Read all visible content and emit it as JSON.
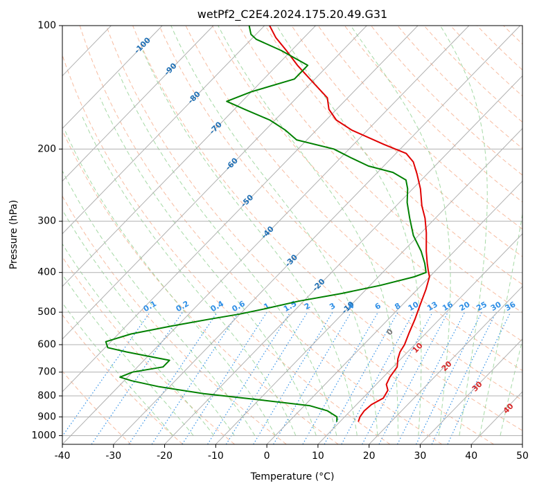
{
  "chart_data": {
    "type": "skew-t",
    "title": "wetPf2_C2E4.2024.175.20.49.G31",
    "xlabel": "Temperature (°C)",
    "ylabel": "Pressure (hPa)",
    "xlim": [
      -40,
      50
    ],
    "ylim": [
      1050,
      100
    ],
    "x_ticks": [
      -40,
      -30,
      -20,
      -10,
      0,
      10,
      20,
      30,
      40,
      50
    ],
    "y_ticks": [
      1000,
      900,
      800,
      700,
      600,
      500,
      400,
      300,
      200,
      100
    ],
    "skew_deg": 45,
    "series": [
      {
        "name": "temperature",
        "color": "#e00000",
        "points": [
          [
            13.6,
            925
          ],
          [
            13.0,
            900
          ],
          [
            12.7,
            870
          ],
          [
            12.9,
            840
          ],
          [
            14.0,
            810
          ],
          [
            13.4,
            775
          ],
          [
            12.0,
            750
          ],
          [
            11.3,
            720
          ],
          [
            10.8,
            680
          ],
          [
            9.4,
            650
          ],
          [
            8.5,
            625
          ],
          [
            8.0,
            600
          ],
          [
            6.6,
            560
          ],
          [
            5.2,
            520
          ],
          [
            3.5,
            480
          ],
          [
            1.7,
            440
          ],
          [
            0.0,
            410
          ],
          [
            -1.5,
            395
          ],
          [
            -3.0,
            380
          ],
          [
            -5.5,
            355
          ],
          [
            -9.0,
            320
          ],
          [
            -12.0,
            295
          ],
          [
            -15.0,
            275
          ],
          [
            -18.5,
            250
          ],
          [
            -22.0,
            230
          ],
          [
            -25.0,
            215
          ],
          [
            -28.0,
            205
          ],
          [
            -34.0,
            195
          ],
          [
            -43.0,
            180
          ],
          [
            -48.0,
            170
          ],
          [
            -51.5,
            160
          ],
          [
            -54.0,
            150
          ],
          [
            -59.5,
            138
          ],
          [
            -66.0,
            125
          ],
          [
            -71.0,
            115
          ],
          [
            -75.5,
            107
          ],
          [
            -79.0,
            100
          ]
        ]
      },
      {
        "name": "dewpoint",
        "color": "#008000",
        "points": [
          [
            9.4,
            925
          ],
          [
            8.5,
            900
          ],
          [
            5.5,
            870
          ],
          [
            1.0,
            845
          ],
          [
            -9.0,
            820
          ],
          [
            -22.0,
            790
          ],
          [
            -32.0,
            760
          ],
          [
            -38.5,
            735
          ],
          [
            -41.5,
            720
          ],
          [
            -40.0,
            700
          ],
          [
            -35.0,
            680
          ],
          [
            -35.0,
            655
          ],
          [
            -40.0,
            640
          ],
          [
            -45.0,
            625
          ],
          [
            -49.5,
            610
          ],
          [
            -51.0,
            590
          ],
          [
            -47.5,
            565
          ],
          [
            -41.0,
            540
          ],
          [
            -35.0,
            520
          ],
          [
            -30.0,
            505
          ],
          [
            -26.0,
            490
          ],
          [
            -21.0,
            470
          ],
          [
            -14.0,
            450
          ],
          [
            -8.0,
            430
          ],
          [
            -3.0,
            410
          ],
          [
            -1.5,
            400
          ],
          [
            -3.5,
            380
          ],
          [
            -6.5,
            355
          ],
          [
            -11.0,
            325
          ],
          [
            -15.0,
            295
          ],
          [
            -18.5,
            270
          ],
          [
            -21.0,
            250
          ],
          [
            -23.0,
            238
          ],
          [
            -27.0,
            228
          ],
          [
            -33.0,
            220
          ],
          [
            -38.0,
            210
          ],
          [
            -43.0,
            200
          ],
          [
            -52.0,
            190
          ],
          [
            -56.0,
            180
          ],
          [
            -61.0,
            170
          ],
          [
            -68.0,
            160
          ],
          [
            -73.0,
            153
          ],
          [
            -70.0,
            145
          ],
          [
            -64.0,
            135
          ],
          [
            -64.0,
            125
          ],
          [
            -72.0,
            115
          ],
          [
            -79.0,
            108
          ],
          [
            -81.0,
            105
          ],
          [
            -83.0,
            100
          ]
        ]
      }
    ],
    "isotherm_labels": [
      -100,
      -90,
      -80,
      -70,
      -60,
      -50,
      -40,
      -30,
      -20,
      -10
    ],
    "mixing_ratio_labels": [
      "0.1",
      "0.2",
      "0.4",
      "0.6",
      "1",
      "1.5",
      "2",
      "3",
      "4",
      "6",
      "8",
      "10",
      "13",
      "16",
      "20",
      "25",
      "30",
      "36"
    ],
    "dry_adiabat_labels": [
      0,
      10,
      20,
      30,
      40
    ],
    "colors": {
      "temperature": "#e00000",
      "dewpoint": "#008000",
      "isotherm_label": "#1f6fb4",
      "mixing_ratio": "#2f8fe6",
      "dry_adiabat": "#f4a582",
      "moist_adiabat": "#8fcf8f",
      "dry_adiabat_label": "#d62728",
      "grid": "#b0b0b0"
    }
  }
}
